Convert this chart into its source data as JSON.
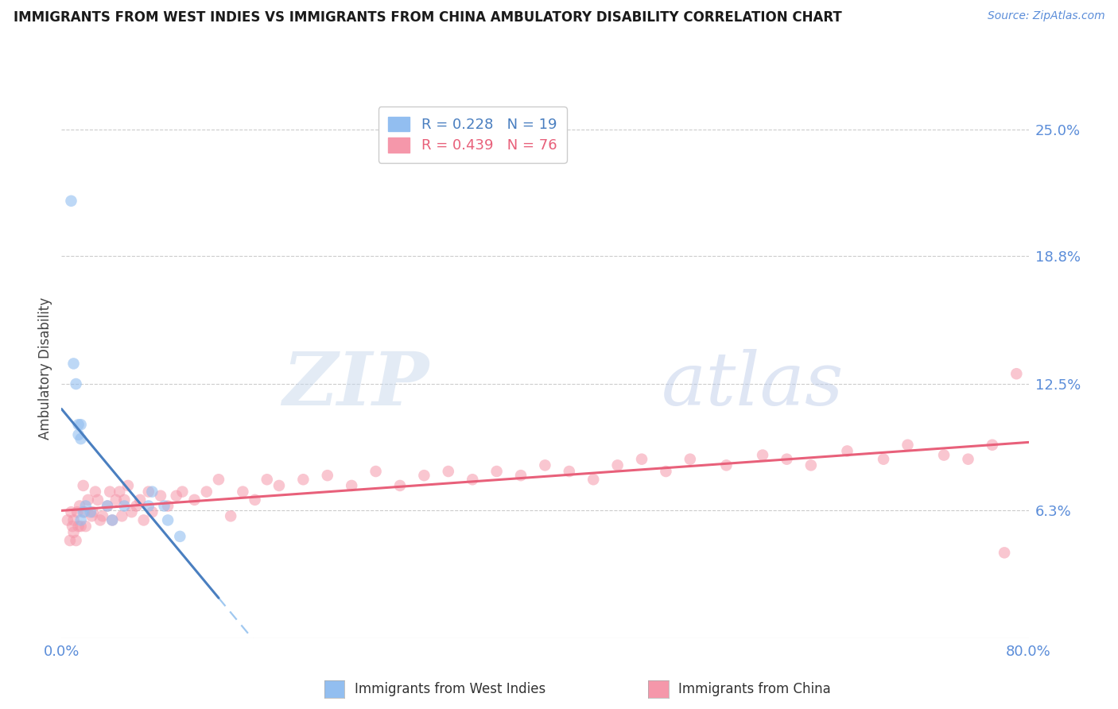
{
  "title": "IMMIGRANTS FROM WEST INDIES VS IMMIGRANTS FROM CHINA AMBULATORY DISABILITY CORRELATION CHART",
  "source": "Source: ZipAtlas.com",
  "ylabel": "Ambulatory Disability",
  "xlim": [
    0.0,
    0.8
  ],
  "ylim": [
    0.0,
    0.265
  ],
  "yticks": [
    0.063,
    0.125,
    0.188,
    0.25
  ],
  "ytick_labels": [
    "6.3%",
    "12.5%",
    "18.8%",
    "25.0%"
  ],
  "xtick_labels": [
    "0.0%",
    "80.0%"
  ],
  "xtick_vals": [
    0.0,
    0.8
  ],
  "legend_r1": "R = 0.228",
  "legend_n1": "N = 19",
  "legend_r2": "R = 0.439",
  "legend_n2": "N = 76",
  "color_blue": "#92BEF0",
  "color_pink": "#F597AA",
  "color_blue_line": "#4A7FC0",
  "color_pink_line": "#E8607A",
  "color_dashed": "#A0C8F0",
  "color_tick_label": "#5B8DD9",
  "background": "#FFFFFF",
  "west_indies_x": [
    0.008,
    0.01,
    0.012,
    0.014,
    0.014,
    0.016,
    0.016,
    0.016,
    0.018,
    0.02,
    0.024,
    0.038,
    0.042,
    0.052,
    0.072,
    0.075,
    0.085,
    0.088,
    0.098
  ],
  "west_indies_y": [
    0.215,
    0.135,
    0.125,
    0.105,
    0.1,
    0.105,
    0.098,
    0.058,
    0.062,
    0.065,
    0.062,
    0.065,
    0.058,
    0.065,
    0.065,
    0.072,
    0.065,
    0.058,
    0.05
  ],
  "china_x": [
    0.005,
    0.007,
    0.008,
    0.009,
    0.01,
    0.01,
    0.012,
    0.013,
    0.014,
    0.015,
    0.016,
    0.018,
    0.019,
    0.02,
    0.022,
    0.025,
    0.026,
    0.028,
    0.03,
    0.032,
    0.034,
    0.038,
    0.04,
    0.042,
    0.045,
    0.048,
    0.05,
    0.052,
    0.055,
    0.058,
    0.062,
    0.065,
    0.068,
    0.072,
    0.075,
    0.082,
    0.088,
    0.095,
    0.1,
    0.11,
    0.12,
    0.13,
    0.14,
    0.15,
    0.16,
    0.17,
    0.18,
    0.2,
    0.22,
    0.24,
    0.26,
    0.28,
    0.3,
    0.32,
    0.34,
    0.36,
    0.38,
    0.4,
    0.42,
    0.44,
    0.46,
    0.48,
    0.5,
    0.52,
    0.55,
    0.58,
    0.6,
    0.62,
    0.65,
    0.68,
    0.7,
    0.73,
    0.75,
    0.77,
    0.79,
    0.78
  ],
  "china_y": [
    0.058,
    0.048,
    0.062,
    0.055,
    0.058,
    0.052,
    0.048,
    0.062,
    0.055,
    0.065,
    0.055,
    0.075,
    0.062,
    0.055,
    0.068,
    0.06,
    0.062,
    0.072,
    0.068,
    0.058,
    0.06,
    0.065,
    0.072,
    0.058,
    0.068,
    0.072,
    0.06,
    0.068,
    0.075,
    0.062,
    0.065,
    0.068,
    0.058,
    0.072,
    0.062,
    0.07,
    0.065,
    0.07,
    0.072,
    0.068,
    0.072,
    0.078,
    0.06,
    0.072,
    0.068,
    0.078,
    0.075,
    0.078,
    0.08,
    0.075,
    0.082,
    0.075,
    0.08,
    0.082,
    0.078,
    0.082,
    0.08,
    0.085,
    0.082,
    0.078,
    0.085,
    0.088,
    0.082,
    0.088,
    0.085,
    0.09,
    0.088,
    0.085,
    0.092,
    0.088,
    0.095,
    0.09,
    0.088,
    0.095,
    0.13,
    0.042
  ],
  "blue_line_x_start": 0.0,
  "blue_line_x_end": 0.13,
  "dashed_line_x_start": 0.13,
  "dashed_line_x_end": 0.8,
  "pink_line_x_start": 0.0,
  "pink_line_x_end": 0.8
}
